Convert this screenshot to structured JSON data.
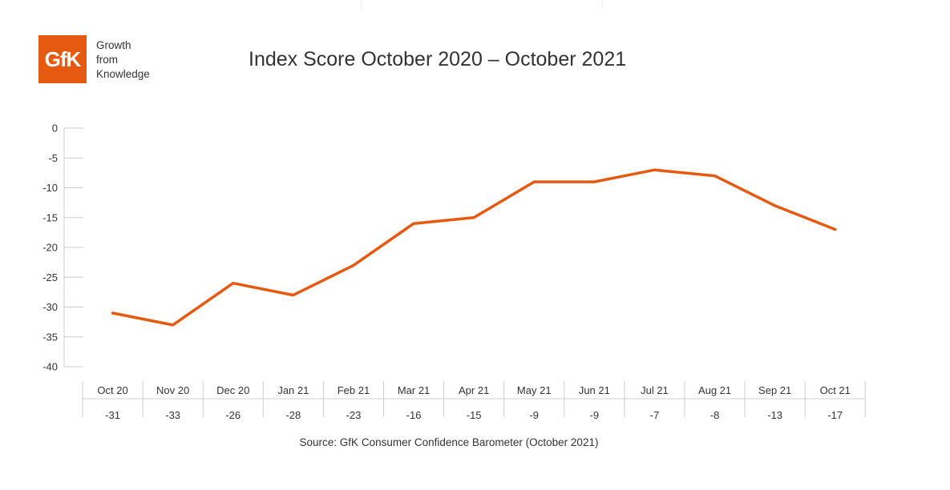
{
  "brand": {
    "logo_text": "GfK",
    "tagline": [
      "Growth",
      "from",
      "Knowledge"
    ],
    "color": "#e55a10"
  },
  "chart_data": {
    "type": "line",
    "title": "Index Score October 2020 – October 2021",
    "categories": [
      "Oct 20",
      "Nov 20",
      "Dec 20",
      "Jan 21",
      "Feb 21",
      "Mar 21",
      "Apr 21",
      "May 21",
      "Jun 21",
      "Jul 21",
      "Aug 21",
      "Sep 21",
      "Oct 21"
    ],
    "series": [
      {
        "values": [
          -31,
          -33,
          -26,
          -28,
          -23,
          -16,
          -15,
          -9,
          -9,
          -7,
          -8,
          -13,
          -17
        ],
        "color": "#e55a10"
      }
    ],
    "ylim": [
      -40,
      0
    ],
    "yticks": [
      0,
      -5,
      -10,
      -15,
      -20,
      -25,
      -30,
      -35,
      -40
    ],
    "grid": false,
    "data_table": true,
    "source": "Source: GfK Consumer Confidence Barometer (October 2021)"
  }
}
